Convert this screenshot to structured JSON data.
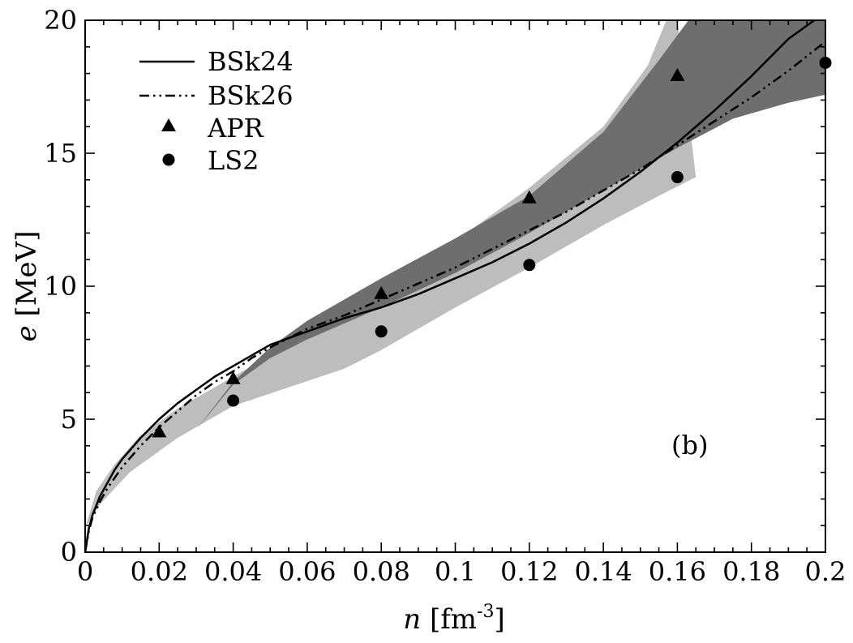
{
  "chart_data": {
    "type": "line",
    "panel_label": "(b)",
    "xlabel": {
      "italic": "n",
      "unit_base": " [fm",
      "unit_sup": "-3",
      "unit_close": "]"
    },
    "ylabel": {
      "italic": "e",
      "unit": " [MeV]"
    },
    "xlim": [
      0,
      0.2
    ],
    "ylim": [
      0,
      20
    ],
    "x_ticks": [
      0,
      0.02,
      0.04,
      0.06,
      0.08,
      0.1,
      0.12,
      0.14,
      0.16,
      0.18,
      0.2
    ],
    "x_tick_labels": [
      "0",
      "0.02",
      "0.04",
      "0.06",
      "0.08",
      "0.1",
      "0.12",
      "0.14",
      "0.16",
      "0.18",
      "0.2"
    ],
    "y_ticks": [
      0,
      5,
      10,
      15,
      20
    ],
    "y_tick_labels": [
      "0",
      "5",
      "10",
      "15",
      "20"
    ],
    "x_minor_step": 0.005,
    "y_minor_step": 1,
    "legend_position": "top-left",
    "bands": [
      {
        "color": "#bdbdbd",
        "polygon": [
          [
            0.0,
            0.9
          ],
          [
            0.003,
            2.3
          ],
          [
            0.008,
            3.3
          ],
          [
            0.015,
            4.4
          ],
          [
            0.025,
            5.4
          ],
          [
            0.035,
            6.2
          ],
          [
            0.045,
            7.0
          ],
          [
            0.055,
            7.8
          ],
          [
            0.065,
            8.6
          ],
          [
            0.08,
            9.9
          ],
          [
            0.1,
            11.7
          ],
          [
            0.12,
            13.7
          ],
          [
            0.14,
            16.0
          ],
          [
            0.152,
            18.3
          ],
          [
            0.157,
            20.0
          ],
          [
            0.16,
            20.0
          ],
          [
            0.165,
            14.1
          ],
          [
            0.155,
            13.4
          ],
          [
            0.14,
            12.3
          ],
          [
            0.12,
            10.7
          ],
          [
            0.1,
            9.2
          ],
          [
            0.08,
            7.6
          ],
          [
            0.07,
            6.9
          ],
          [
            0.055,
            6.2
          ],
          [
            0.04,
            5.5
          ],
          [
            0.025,
            4.3
          ],
          [
            0.012,
            3.0
          ],
          [
            0.004,
            1.8
          ],
          [
            0.0,
            0.9
          ]
        ]
      },
      {
        "color": "#6e6e6e",
        "polygon": [
          [
            0.03,
            4.6
          ],
          [
            0.04,
            6.4
          ],
          [
            0.05,
            7.7
          ],
          [
            0.06,
            8.7
          ],
          [
            0.08,
            10.3
          ],
          [
            0.1,
            11.8
          ],
          [
            0.12,
            13.4
          ],
          [
            0.14,
            15.8
          ],
          [
            0.155,
            18.5
          ],
          [
            0.163,
            20.0
          ],
          [
            0.2,
            20.0
          ],
          [
            0.2,
            17.2
          ],
          [
            0.19,
            16.9
          ],
          [
            0.175,
            16.3
          ],
          [
            0.16,
            15.2
          ],
          [
            0.14,
            13.6
          ],
          [
            0.12,
            12.0
          ],
          [
            0.1,
            10.5
          ],
          [
            0.08,
            9.2
          ],
          [
            0.07,
            8.6
          ],
          [
            0.06,
            8.0
          ],
          [
            0.05,
            7.3
          ],
          [
            0.04,
            6.3
          ],
          [
            0.03,
            4.6
          ]
        ]
      }
    ],
    "series": [
      {
        "name": "BSk24",
        "style": "solid",
        "x": [
          0.0,
          0.001,
          0.002,
          0.004,
          0.006,
          0.008,
          0.01,
          0.015,
          0.02,
          0.025,
          0.03,
          0.035,
          0.04,
          0.045,
          0.05,
          0.06,
          0.07,
          0.08,
          0.09,
          0.1,
          0.11,
          0.12,
          0.13,
          0.14,
          0.15,
          0.16,
          0.17,
          0.18,
          0.19,
          0.197
        ],
        "y": [
          0.0,
          0.9,
          1.4,
          2.1,
          2.6,
          3.1,
          3.5,
          4.3,
          5.0,
          5.6,
          6.1,
          6.6,
          7.0,
          7.4,
          7.8,
          8.3,
          8.8,
          9.2,
          9.7,
          10.3,
          10.9,
          11.6,
          12.4,
          13.3,
          14.3,
          15.4,
          16.6,
          17.9,
          19.3,
          20.0
        ]
      },
      {
        "name": "BSk26",
        "style": "dash-dot-dot",
        "x": [
          0.0,
          0.001,
          0.002,
          0.004,
          0.006,
          0.008,
          0.01,
          0.015,
          0.02,
          0.025,
          0.03,
          0.035,
          0.04,
          0.045,
          0.05,
          0.06,
          0.07,
          0.08,
          0.09,
          0.1,
          0.11,
          0.12,
          0.13,
          0.14,
          0.15,
          0.16,
          0.17,
          0.18,
          0.19,
          0.2
        ],
        "y": [
          0.0,
          0.8,
          1.3,
          1.9,
          2.4,
          2.8,
          3.2,
          4.0,
          4.7,
          5.3,
          5.9,
          6.4,
          6.8,
          7.3,
          7.7,
          8.4,
          8.9,
          9.5,
          10.1,
          10.7,
          11.4,
          12.1,
          12.8,
          13.6,
          14.4,
          15.3,
          16.2,
          17.1,
          18.1,
          19.2
        ]
      }
    ],
    "markers": [
      {
        "name": "APR",
        "shape": "triangle",
        "x": [
          0.02,
          0.04,
          0.08,
          0.12,
          0.16
        ],
        "y": [
          4.5,
          6.5,
          9.7,
          13.3,
          17.9
        ]
      },
      {
        "name": "LS2",
        "shape": "circle",
        "x": [
          0.04,
          0.08,
          0.12,
          0.16,
          0.2
        ],
        "y": [
          5.7,
          8.3,
          10.8,
          14.1,
          18.4
        ]
      }
    ]
  }
}
